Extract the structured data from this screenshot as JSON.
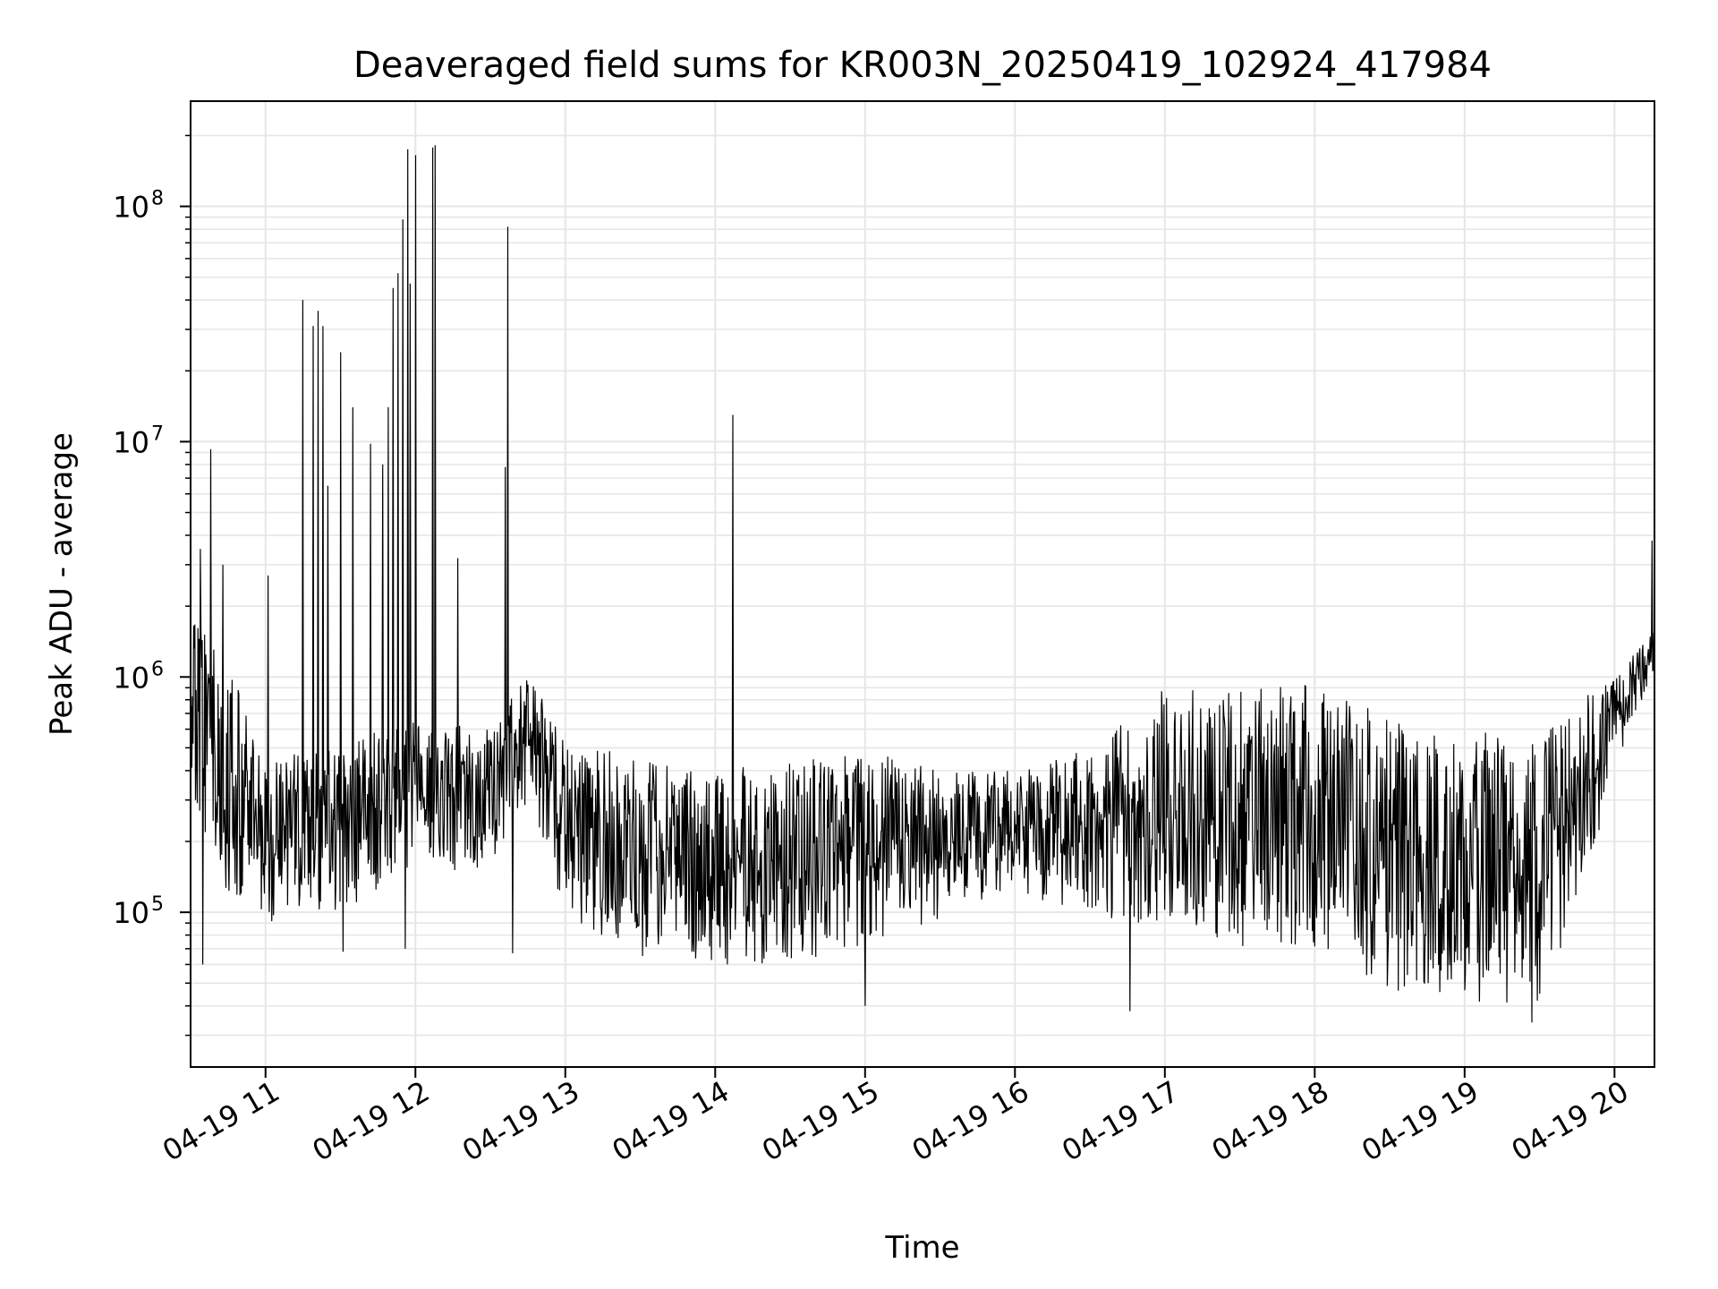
{
  "chart_data": {
    "type": "line",
    "title": "Deaveraged field sums for KR003N_20250419_102924_417984",
    "xlabel": "Time",
    "ylabel": "Peak ADU - average",
    "yscale": "log",
    "xlim": [
      "2025-04-19 10:30",
      "2025-04-19 20:16"
    ],
    "ylim": [
      22000,
      280000000
    ],
    "xticks": [
      {
        "t": "2025-04-19 11:00",
        "label": "04-19 11"
      },
      {
        "t": "2025-04-19 12:00",
        "label": "04-19 12"
      },
      {
        "t": "2025-04-19 13:00",
        "label": "04-19 13"
      },
      {
        "t": "2025-04-19 14:00",
        "label": "04-19 14"
      },
      {
        "t": "2025-04-19 15:00",
        "label": "04-19 15"
      },
      {
        "t": "2025-04-19 16:00",
        "label": "04-19 16"
      },
      {
        "t": "2025-04-19 17:00",
        "label": "04-19 17"
      },
      {
        "t": "2025-04-19 18:00",
        "label": "04-19 18"
      },
      {
        "t": "2025-04-19 19:00",
        "label": "04-19 19"
      },
      {
        "t": "2025-04-19 20:00",
        "label": "04-19 20"
      }
    ],
    "yticks": [
      {
        "value": 100000,
        "base": "10",
        "exp": "5"
      },
      {
        "value": 1000000,
        "base": "10",
        "exp": "6"
      },
      {
        "value": 10000000,
        "base": "10",
        "exp": "7"
      },
      {
        "value": 100000000,
        "base": "10",
        "exp": "8"
      }
    ],
    "grid": true,
    "line_color": "#000000",
    "baseline_envelope": [
      {
        "t": "2025-04-19 10:30",
        "low": 250000,
        "high": 1800000
      },
      {
        "t": "2025-04-19 10:45",
        "low": 120000,
        "high": 1200000
      },
      {
        "t": "2025-04-19 11:00",
        "low": 90000,
        "high": 450000
      },
      {
        "t": "2025-04-19 11:30",
        "low": 100000,
        "high": 500000
      },
      {
        "t": "2025-04-19 12:00",
        "low": 150000,
        "high": 700000
      },
      {
        "t": "2025-04-19 12:30",
        "low": 150000,
        "high": 600000
      },
      {
        "t": "2025-04-19 12:45",
        "low": 300000,
        "high": 1100000
      },
      {
        "t": "2025-04-19 13:00",
        "low": 100000,
        "high": 550000
      },
      {
        "t": "2025-04-19 13:30",
        "low": 60000,
        "high": 450000
      },
      {
        "t": "2025-04-19 14:00",
        "low": 60000,
        "high": 400000
      },
      {
        "t": "2025-04-19 14:30",
        "low": 60000,
        "high": 450000
      },
      {
        "t": "2025-04-19 15:00",
        "low": 70000,
        "high": 500000
      },
      {
        "t": "2025-04-19 15:30",
        "low": 90000,
        "high": 400000
      },
      {
        "t": "2025-04-19 16:00",
        "low": 120000,
        "high": 400000
      },
      {
        "t": "2025-04-19 16:30",
        "low": 100000,
        "high": 500000
      },
      {
        "t": "2025-04-19 17:00",
        "low": 80000,
        "high": 900000
      },
      {
        "t": "2025-04-19 17:30",
        "low": 70000,
        "high": 900000
      },
      {
        "t": "2025-04-19 18:00",
        "low": 70000,
        "high": 950000
      },
      {
        "t": "2025-04-19 18:30",
        "low": 45000,
        "high": 700000
      },
      {
        "t": "2025-04-19 19:00",
        "low": 42000,
        "high": 600000
      },
      {
        "t": "2025-04-19 19:30",
        "low": 40000,
        "high": 550000
      },
      {
        "t": "2025-04-19 19:50",
        "low": 150000,
        "high": 850000
      },
      {
        "t": "2025-04-19 20:00",
        "low": 400000,
        "high": 1000000
      },
      {
        "t": "2025-04-19 20:16",
        "low": 1100000,
        "high": 1600000
      }
    ],
    "spikes": [
      {
        "t": "2025-04-19 10:34",
        "value": 3500000
      },
      {
        "t": "2025-04-19 10:38",
        "value": 9300000
      },
      {
        "t": "2025-04-19 10:43",
        "value": 3000000
      },
      {
        "t": "2025-04-19 11:01",
        "value": 2700000
      },
      {
        "t": "2025-04-19 11:15",
        "value": 40000000
      },
      {
        "t": "2025-04-19 11:19",
        "value": 31000000
      },
      {
        "t": "2025-04-19 11:21",
        "value": 36000000
      },
      {
        "t": "2025-04-19 11:23",
        "value": 31000000
      },
      {
        "t": "2025-04-19 11:25",
        "value": 6500000
      },
      {
        "t": "2025-04-19 11:30",
        "value": 24000000
      },
      {
        "t": "2025-04-19 11:35",
        "value": 14000000
      },
      {
        "t": "2025-04-19 11:42",
        "value": 9800000
      },
      {
        "t": "2025-04-19 11:47",
        "value": 8000000
      },
      {
        "t": "2025-04-19 11:49",
        "value": 14000000
      },
      {
        "t": "2025-04-19 11:51",
        "value": 45000000
      },
      {
        "t": "2025-04-19 11:53",
        "value": 52000000
      },
      {
        "t": "2025-04-19 11:55",
        "value": 88000000
      },
      {
        "t": "2025-04-19 11:57",
        "value": 175000000
      },
      {
        "t": "2025-04-19 11:58",
        "value": 47000000
      },
      {
        "t": "2025-04-19 12:00",
        "value": 165000000
      },
      {
        "t": "2025-04-19 12:07",
        "value": 178000000
      },
      {
        "t": "2025-04-19 12:08",
        "value": 182000000
      },
      {
        "t": "2025-04-19 12:17",
        "value": 3200000
      },
      {
        "t": "2025-04-19 12:36",
        "value": 7800000
      },
      {
        "t": "2025-04-19 12:37",
        "value": 82000000
      },
      {
        "t": "2025-04-19 14:07",
        "value": 13000000
      },
      {
        "t": "2025-04-19 20:15",
        "value": 3800000
      }
    ],
    "dips": [
      {
        "t": "2025-04-19 10:35",
        "value": 60000
      },
      {
        "t": "2025-04-19 11:31",
        "value": 68000
      },
      {
        "t": "2025-04-19 11:56",
        "value": 70000
      },
      {
        "t": "2025-04-19 12:39",
        "value": 67000
      },
      {
        "t": "2025-04-19 15:00",
        "value": 40000
      },
      {
        "t": "2025-04-19 16:46",
        "value": 38000
      },
      {
        "t": "2025-04-19 19:27",
        "value": 34000
      }
    ]
  }
}
